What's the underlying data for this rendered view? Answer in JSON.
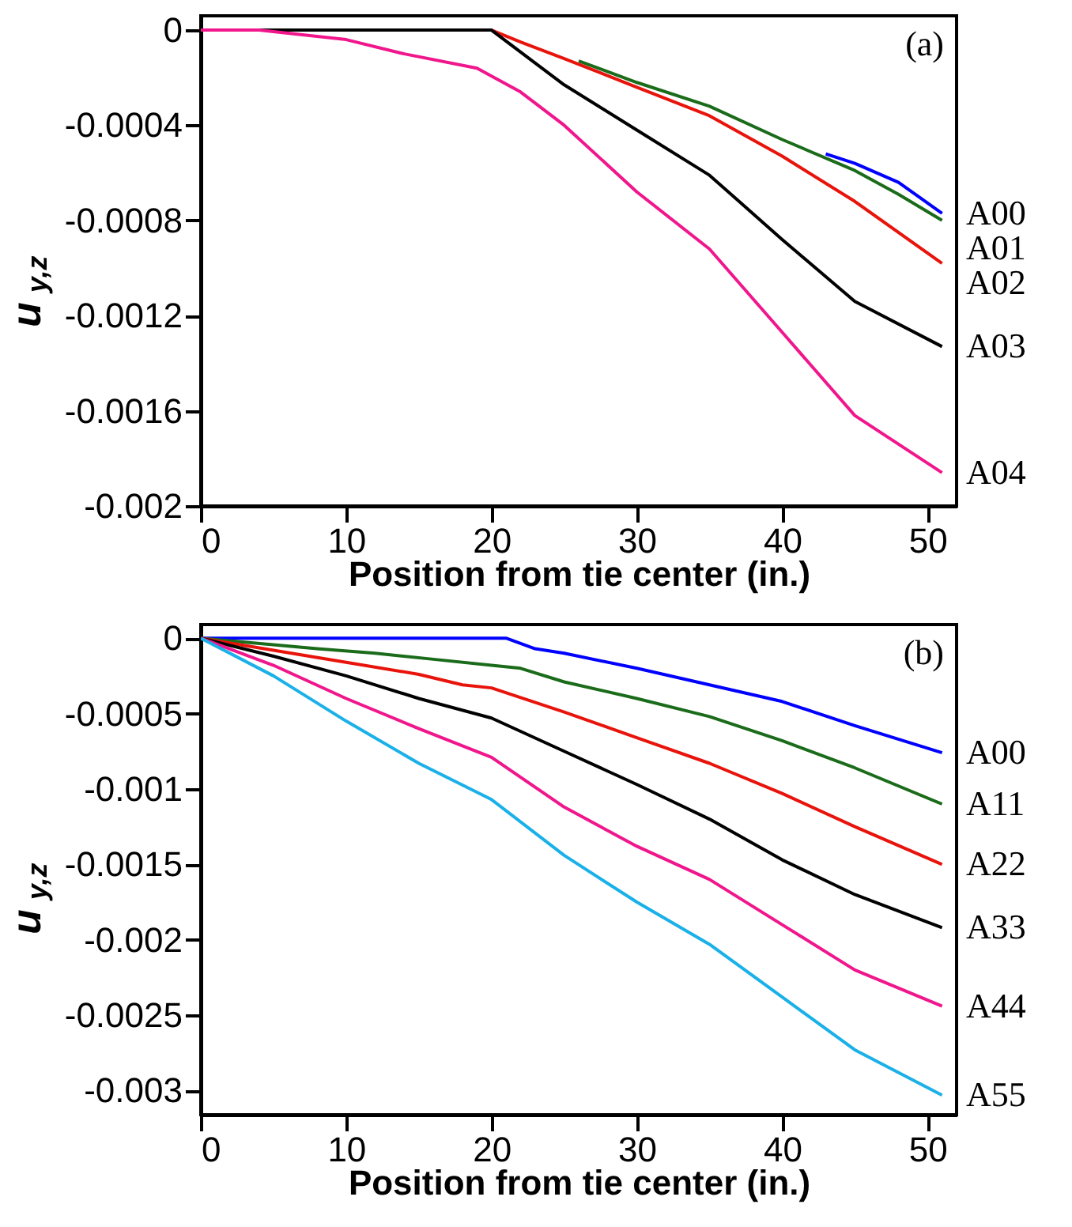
{
  "chart_data": [
    {
      "type": "line",
      "xlabel": "Position from tie center (in.)",
      "ylabel": "u$_{y,z}$",
      "annotations": [
        "(a)"
      ],
      "xlim": [
        0,
        52
      ],
      "xticks": [
        0,
        10,
        20,
        30,
        40,
        50
      ],
      "ylim": [
        -0.002,
        6e-05
      ],
      "yticks": [
        0,
        -0.0004,
        -0.0008,
        -0.0012,
        -0.0016,
        -0.002
      ],
      "grid": false,
      "legend": false,
      "series": [
        {
          "name": "A00",
          "color": "#0000ff",
          "x": [
            43,
            45,
            48,
            51
          ],
          "values": [
            -0.00052,
            -0.00056,
            -0.00064,
            -0.00077
          ]
        },
        {
          "name": "A01",
          "color": "#1a6b1a",
          "x": [
            26,
            30,
            35,
            40,
            45,
            48,
            51
          ],
          "values": [
            -0.00013,
            -0.00022,
            -0.00032,
            -0.00046,
            -0.00059,
            -0.00069,
            -0.0008
          ]
        },
        {
          "name": "A02",
          "color": "#e8140c",
          "x": [
            0,
            20,
            22,
            25,
            30,
            35,
            40,
            45,
            51
          ],
          "values": [
            0,
            0,
            -5e-05,
            -0.00012,
            -0.00024,
            -0.00036,
            -0.00053,
            -0.00072,
            -0.00098
          ]
        },
        {
          "name": "A03",
          "color": "#000000",
          "x": [
            0,
            20,
            25,
            30,
            35,
            40,
            45,
            51
          ],
          "values": [
            0,
            0,
            -0.00023,
            -0.00042,
            -0.00061,
            -0.00088,
            -0.00114,
            -0.00133
          ]
        },
        {
          "name": "A04",
          "color": "#f0168c",
          "x": [
            0,
            4,
            10,
            14,
            19,
            22,
            25,
            30,
            35,
            40,
            45,
            51
          ],
          "values": [
            0,
            0,
            -4e-05,
            -0.0001,
            -0.00016,
            -0.00026,
            -0.0004,
            -0.00068,
            -0.00092,
            -0.00127,
            -0.00162,
            -0.00186
          ]
        }
      ]
    },
    {
      "type": "line",
      "xlabel": "Position from tie center (in.)",
      "ylabel": "u$_{y,z}$",
      "annotations": [
        "(b)"
      ],
      "xlim": [
        0,
        52
      ],
      "xticks": [
        0,
        10,
        20,
        30,
        40,
        50
      ],
      "ylim": [
        -0.00316,
        9e-05
      ],
      "yticks": [
        0,
        -0.0005,
        -0.001,
        -0.0015,
        -0.002,
        -0.0025,
        -0.003
      ],
      "grid": false,
      "legend": false,
      "series": [
        {
          "name": "A00",
          "color": "#0000ff",
          "x": [
            0,
            21,
            23,
            25,
            30,
            35,
            40,
            45,
            51
          ],
          "values": [
            0,
            0,
            -7e-05,
            -0.0001,
            -0.0002,
            -0.00031,
            -0.00042,
            -0.00058,
            -0.00076
          ]
        },
        {
          "name": "A11",
          "color": "#1a6b1a",
          "x": [
            0,
            8,
            12,
            16,
            20,
            22,
            25,
            30,
            35,
            40,
            45,
            51
          ],
          "values": [
            0,
            -7e-05,
            -0.0001,
            -0.00014,
            -0.00018,
            -0.0002,
            -0.00029,
            -0.0004,
            -0.00052,
            -0.00068,
            -0.00086,
            -0.0011
          ]
        },
        {
          "name": "A22",
          "color": "#e8140c",
          "x": [
            0,
            5,
            10,
            15,
            18,
            20,
            25,
            30,
            35,
            40,
            45,
            51
          ],
          "values": [
            0,
            -8e-05,
            -0.00016,
            -0.00024,
            -0.00031,
            -0.00033,
            -0.00049,
            -0.00066,
            -0.00083,
            -0.00103,
            -0.00125,
            -0.0015
          ]
        },
        {
          "name": "A33",
          "color": "#000000",
          "x": [
            0,
            5,
            10,
            15,
            20,
            25,
            30,
            35,
            40,
            45,
            51
          ],
          "values": [
            0,
            -0.00012,
            -0.00025,
            -0.0004,
            -0.00053,
            -0.00075,
            -0.00097,
            -0.0012,
            -0.00147,
            -0.0017,
            -0.00192
          ]
        },
        {
          "name": "A44",
          "color": "#f0168c",
          "x": [
            0,
            5,
            10,
            15,
            20,
            25,
            30,
            35,
            40,
            45,
            51
          ],
          "values": [
            0,
            -0.00018,
            -0.0004,
            -0.0006,
            -0.00079,
            -0.00112,
            -0.00138,
            -0.0016,
            -0.0019,
            -0.0022,
            -0.00244
          ]
        },
        {
          "name": "A55",
          "color": "#1ab0e8",
          "x": [
            0,
            5,
            10,
            15,
            20,
            25,
            30,
            35,
            40,
            45,
            51
          ],
          "values": [
            0,
            -0.00025,
            -0.00055,
            -0.00083,
            -0.00107,
            -0.00144,
            -0.00175,
            -0.00203,
            -0.00238,
            -0.00273,
            -0.00303
          ]
        }
      ]
    }
  ]
}
